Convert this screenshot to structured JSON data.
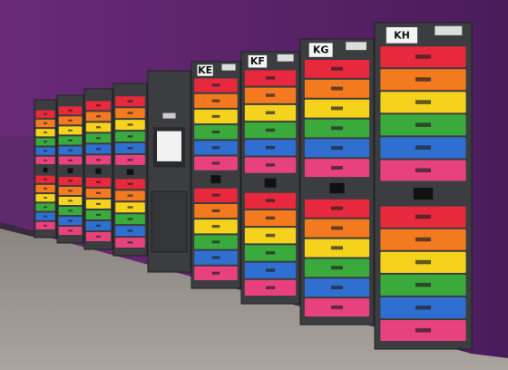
{
  "locker_labels": [
    "KE",
    "KF",
    "KG",
    "KH"
  ]
}
